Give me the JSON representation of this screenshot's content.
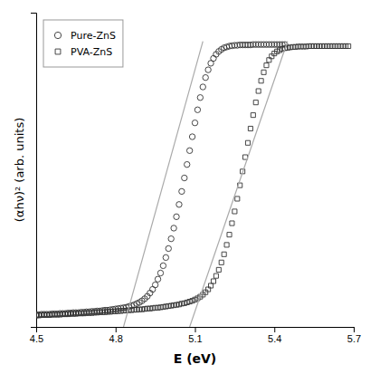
{
  "chart_data": {
    "type": "scatter",
    "xlabel": "E (eV)",
    "ylabel": "(αhν)² (arb. units)",
    "xlim": [
      4.5,
      5.7
    ],
    "xticks": [
      4.5,
      4.8,
      5.1,
      5.4,
      5.7
    ],
    "ylim": [
      -0.02,
      0.75
    ],
    "yticks": [],
    "tick_labels": "x",
    "grid": false,
    "legend": "upper left",
    "series": [
      {
        "name": "Pure-ZnS",
        "type": "scatter",
        "marker": "circle",
        "color": "#333333",
        "x": [
          4.5,
          4.51,
          4.52,
          4.53,
          4.54,
          4.55,
          4.56,
          4.57,
          4.58,
          4.59,
          4.6,
          4.61,
          4.62,
          4.63,
          4.64,
          4.65,
          4.66,
          4.67,
          4.68,
          4.69,
          4.7,
          4.71,
          4.72,
          4.73,
          4.74,
          4.75,
          4.76,
          4.77,
          4.78,
          4.79,
          4.8,
          4.81,
          4.82,
          4.83,
          4.84,
          4.85,
          4.86,
          4.87,
          4.88,
          4.89,
          4.9,
          4.91,
          4.92,
          4.93,
          4.94,
          4.95,
          4.96,
          4.97,
          4.98,
          4.99,
          5.0,
          5.01,
          5.02,
          5.03,
          5.04,
          5.05,
          5.06,
          5.07,
          5.08,
          5.09,
          5.1,
          5.11,
          5.12,
          5.13,
          5.14,
          5.15,
          5.16,
          5.17,
          5.18,
          5.19,
          5.2,
          5.21,
          5.22,
          5.23,
          5.24,
          5.25,
          5.26,
          5.27,
          5.28,
          5.29,
          5.3,
          5.31,
          5.32,
          5.33,
          5.34,
          5.35,
          5.36,
          5.37,
          5.38,
          5.39,
          5.4,
          5.41,
          5.42,
          5.43,
          5.44
        ],
        "values": [
          0.01,
          0.01,
          0.011,
          0.011,
          0.011,
          0.011,
          0.012,
          0.012,
          0.012,
          0.013,
          0.013,
          0.013,
          0.014,
          0.014,
          0.015,
          0.015,
          0.015,
          0.016,
          0.016,
          0.017,
          0.017,
          0.018,
          0.018,
          0.019,
          0.019,
          0.02,
          0.021,
          0.021,
          0.022,
          0.023,
          0.024,
          0.025,
          0.026,
          0.027,
          0.028,
          0.03,
          0.032,
          0.034,
          0.037,
          0.04,
          0.044,
          0.049,
          0.055,
          0.063,
          0.072,
          0.083,
          0.097,
          0.112,
          0.13,
          0.15,
          0.172,
          0.196,
          0.222,
          0.25,
          0.28,
          0.312,
          0.345,
          0.378,
          0.412,
          0.446,
          0.48,
          0.512,
          0.542,
          0.568,
          0.591,
          0.61,
          0.626,
          0.638,
          0.648,
          0.655,
          0.66,
          0.664,
          0.666,
          0.668,
          0.669,
          0.67,
          0.67,
          0.671,
          0.671,
          0.671,
          0.671,
          0.671,
          0.672,
          0.672,
          0.672,
          0.672,
          0.672,
          0.672,
          0.672,
          0.672,
          0.672,
          0.672,
          0.672,
          0.672,
          0.672
        ]
      },
      {
        "name": "PVA-ZnS",
        "type": "scatter",
        "marker": "square",
        "color": "#333333",
        "x": [
          4.5,
          4.51,
          4.52,
          4.53,
          4.54,
          4.55,
          4.56,
          4.57,
          4.58,
          4.59,
          4.6,
          4.61,
          4.62,
          4.63,
          4.64,
          4.65,
          4.66,
          4.67,
          4.68,
          4.69,
          4.7,
          4.71,
          4.72,
          4.73,
          4.74,
          4.75,
          4.76,
          4.77,
          4.78,
          4.79,
          4.8,
          4.81,
          4.82,
          4.83,
          4.84,
          4.85,
          4.86,
          4.87,
          4.88,
          4.89,
          4.9,
          4.91,
          4.92,
          4.93,
          4.94,
          4.95,
          4.96,
          4.97,
          4.98,
          4.99,
          5.0,
          5.01,
          5.02,
          5.03,
          5.04,
          5.05,
          5.06,
          5.07,
          5.08,
          5.09,
          5.1,
          5.11,
          5.12,
          5.13,
          5.14,
          5.15,
          5.16,
          5.17,
          5.18,
          5.19,
          5.2,
          5.21,
          5.22,
          5.23,
          5.24,
          5.25,
          5.26,
          5.27,
          5.28,
          5.29,
          5.3,
          5.31,
          5.32,
          5.33,
          5.34,
          5.35,
          5.36,
          5.37,
          5.38,
          5.39,
          5.4,
          5.41,
          5.42,
          5.43,
          5.44,
          5.45,
          5.46,
          5.47,
          5.48,
          5.49,
          5.5,
          5.51,
          5.52,
          5.53,
          5.54,
          5.55,
          5.56,
          5.57,
          5.58,
          5.59,
          5.6,
          5.61,
          5.62,
          5.63,
          5.64,
          5.65,
          5.66,
          5.67,
          5.68
        ],
        "values": [
          0.008,
          0.008,
          0.009,
          0.009,
          0.009,
          0.009,
          0.01,
          0.01,
          0.01,
          0.01,
          0.011,
          0.011,
          0.011,
          0.012,
          0.012,
          0.012,
          0.013,
          0.013,
          0.013,
          0.014,
          0.014,
          0.014,
          0.015,
          0.015,
          0.016,
          0.016,
          0.016,
          0.017,
          0.017,
          0.018,
          0.018,
          0.019,
          0.019,
          0.02,
          0.02,
          0.021,
          0.021,
          0.022,
          0.022,
          0.023,
          0.023,
          0.024,
          0.025,
          0.025,
          0.026,
          0.027,
          0.027,
          0.028,
          0.029,
          0.03,
          0.031,
          0.032,
          0.033,
          0.034,
          0.035,
          0.037,
          0.038,
          0.04,
          0.042,
          0.044,
          0.047,
          0.05,
          0.054,
          0.059,
          0.065,
          0.072,
          0.081,
          0.092,
          0.105,
          0.12,
          0.138,
          0.158,
          0.181,
          0.206,
          0.234,
          0.263,
          0.294,
          0.327,
          0.361,
          0.396,
          0.431,
          0.466,
          0.499,
          0.53,
          0.558,
          0.583,
          0.604,
          0.621,
          0.634,
          0.643,
          0.65,
          0.655,
          0.658,
          0.661,
          0.663,
          0.664,
          0.665,
          0.666,
          0.666,
          0.667,
          0.667,
          0.667,
          0.667,
          0.668,
          0.668,
          0.668,
          0.668,
          0.668,
          0.668,
          0.668,
          0.668,
          0.668,
          0.668,
          0.668,
          0.668,
          0.668,
          0.668,
          0.668,
          0.668
        ]
      },
      {
        "type": "line",
        "line_style": "solid",
        "color": "#aaaaaa",
        "x": [
          4.83,
          5.13
        ],
        "values": [
          -0.02,
          0.68
        ]
      },
      {
        "type": "line",
        "line_style": "solid",
        "color": "#aaaaaa",
        "x": [
          5.08,
          5.45
        ],
        "values": [
          -0.02,
          0.68
        ]
      }
    ]
  }
}
